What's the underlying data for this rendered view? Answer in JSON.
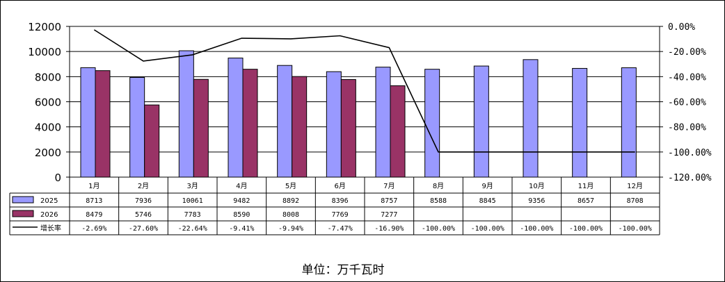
{
  "chart_data": {
    "type": "bar",
    "categories": [
      "1月",
      "2月",
      "3月",
      "4月",
      "5月",
      "6月",
      "7月",
      "8月",
      "9月",
      "10月",
      "11月",
      "12月"
    ],
    "series": [
      {
        "name": "2025",
        "kind": "bar",
        "color": "#9999FF",
        "values": [
          8713,
          7936,
          10061,
          9482,
          8892,
          8396,
          8757,
          8588,
          8845,
          9356,
          8657,
          8708
        ]
      },
      {
        "name": "2026",
        "kind": "bar",
        "color": "#993366",
        "values": [
          8479,
          5746,
          7783,
          8590,
          8008,
          7769,
          7277,
          null,
          null,
          null,
          null,
          null
        ]
      },
      {
        "name": "增长率",
        "kind": "line",
        "axis": "right",
        "color": "#000000",
        "values": [
          -2.69,
          -27.6,
          -22.64,
          -9.41,
          -9.94,
          -7.47,
          -16.9,
          -100.0,
          -100.0,
          -100.0,
          -100.0,
          -100.0
        ],
        "labels": [
          "-2.69%",
          "-27.60%",
          "-22.64%",
          "-9.41%",
          "-9.94%",
          "-7.47%",
          "-16.90%",
          "-100.00%",
          "-100.00%",
          "-100.00%",
          "-100.00%",
          "-100.00%"
        ]
      }
    ],
    "y_left": {
      "ylim": [
        0,
        12000
      ],
      "ticks": [
        0,
        2000,
        4000,
        6000,
        8000,
        10000,
        12000
      ]
    },
    "y_right": {
      "ylim": [
        -120,
        0
      ],
      "ticks": [
        0,
        -20,
        -40,
        -60,
        -80,
        -100,
        -120
      ],
      "tick_labels": [
        "0.00%",
        "-20.00%",
        "-40.00%",
        "-60.00%",
        "-80.00%",
        "-100.00%",
        "-120.00%"
      ]
    },
    "grid": true,
    "legend": "data-table-below",
    "unit_label": "单位：万千瓦时"
  }
}
